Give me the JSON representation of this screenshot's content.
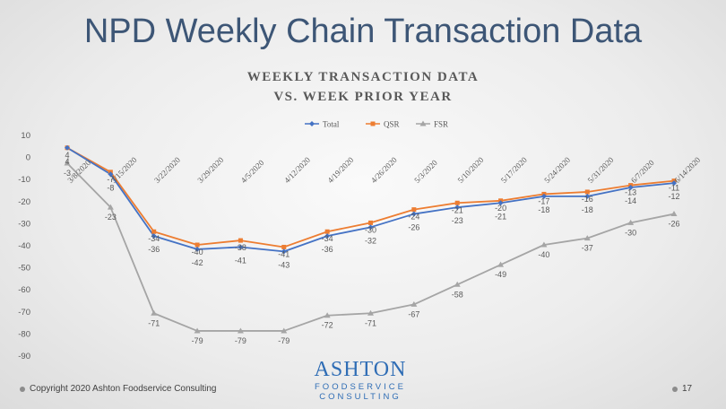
{
  "slide": {
    "title": "NPD Weekly Chain Transaction Data",
    "copyright": "Copyright 2020 Ashton Foodservice Consulting",
    "page_number": "17",
    "logo": {
      "main": "ASHTON",
      "line2": "FOODSERVICE",
      "line3": "CONSULTING"
    }
  },
  "chart_data": {
    "type": "line",
    "title": "WEEKLY TRANSACTION DATA",
    "subtitle": "VS. WEEK PRIOR YEAR",
    "categories": [
      "3/8/2020",
      "3/15/2020",
      "3/22/2020",
      "3/29/2020",
      "4/5/2020",
      "4/12/2020",
      "4/19/2020",
      "4/26/2020",
      "5/3/2020",
      "5/10/2020",
      "5/17/2020",
      "5/24/2020",
      "5/31/2020",
      "6/7/2020",
      "6/14/2020"
    ],
    "series": [
      {
        "name": "Total",
        "color": "#4472c4",
        "marker": "diamond",
        "values": [
          4,
          -8,
          -36,
          -42,
          -41,
          -43,
          -36,
          -32,
          -26,
          -23,
          -21,
          -18,
          -18,
          -14,
          -12
        ]
      },
      {
        "name": "QSR",
        "color": "#ed7d31",
        "marker": "square",
        "values": [
          4,
          -7,
          -34,
          -40,
          -38,
          -41,
          -34,
          -30,
          -24,
          -21,
          -20,
          -17,
          -16,
          -13,
          -11
        ]
      },
      {
        "name": "FSR",
        "color": "#a5a5a5",
        "marker": "triangle",
        "values": [
          -3,
          -23,
          -71,
          -79,
          -79,
          -79,
          -72,
          -71,
          -67,
          -58,
          -49,
          -40,
          -37,
          -30,
          -26
        ]
      }
    ],
    "y_ticks": [
      10,
      0,
      -10,
      -20,
      -30,
      -40,
      -50,
      -60,
      -70,
      -80,
      -90
    ],
    "ylim": [
      -90,
      10
    ],
    "grid": false,
    "legend_position": "top"
  }
}
